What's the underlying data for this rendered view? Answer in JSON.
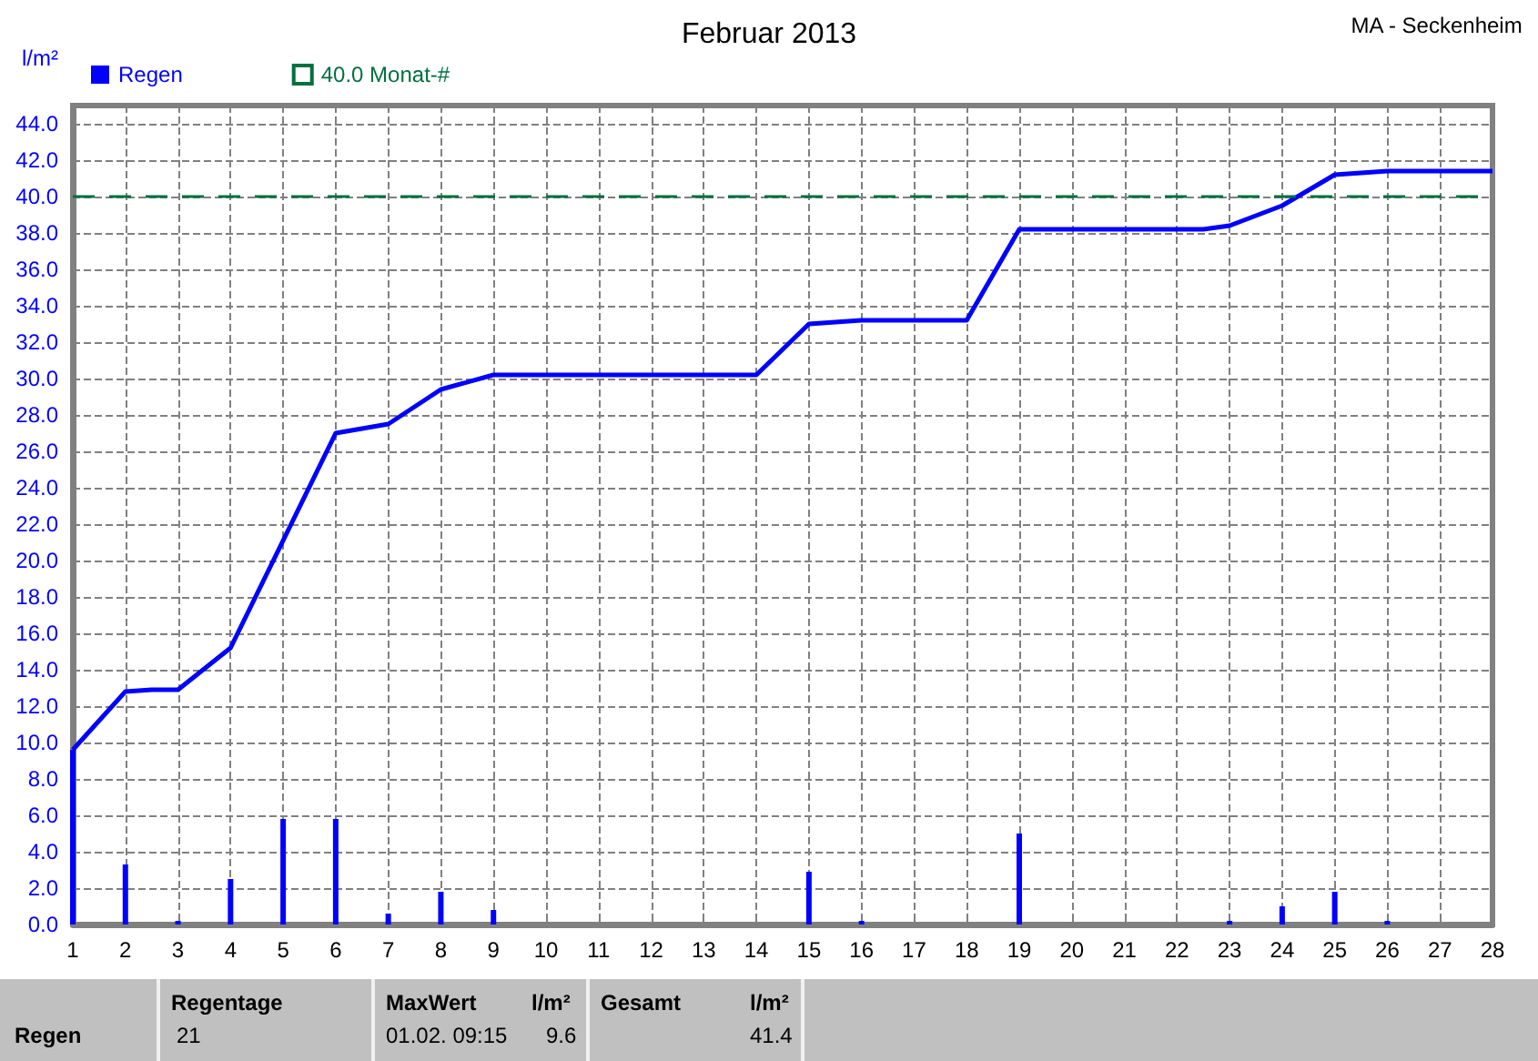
{
  "chart_data": {
    "type": "bar",
    "title": "Februar 2013",
    "ylabel": "l/m²",
    "xlim": [
      1,
      28
    ],
    "xticks": [
      1,
      2,
      3,
      4,
      5,
      6,
      7,
      8,
      9,
      10,
      11,
      12,
      13,
      14,
      15,
      16,
      17,
      18,
      19,
      20,
      21,
      22,
      23,
      24,
      25,
      26,
      27,
      28
    ],
    "ylim": [
      0,
      45
    ],
    "yticks": [
      {
        "value": 0,
        "label": "0.0"
      },
      {
        "value": 2,
        "label": "2.0"
      },
      {
        "value": 4,
        "label": "4.0"
      },
      {
        "value": 6,
        "label": "6.0"
      },
      {
        "value": 8,
        "label": "8.0"
      },
      {
        "value": 10,
        "label": "10.0"
      },
      {
        "value": 12,
        "label": "12.0"
      },
      {
        "value": 14,
        "label": "14.0"
      },
      {
        "value": 16,
        "label": "16.0"
      },
      {
        "value": 18,
        "label": "18.0"
      },
      {
        "value": 20,
        "label": "20.0"
      },
      {
        "value": 22,
        "label": "22.0"
      },
      {
        "value": 24,
        "label": "24.0"
      },
      {
        "value": 26,
        "label": "26.0"
      },
      {
        "value": 28,
        "label": "28.0"
      },
      {
        "value": 30,
        "label": "30.0"
      },
      {
        "value": 32,
        "label": "32.0"
      },
      {
        "value": 34,
        "label": "34.0"
      },
      {
        "value": 36,
        "label": "36.0"
      },
      {
        "value": 38,
        "label": "38.0"
      },
      {
        "value": 40,
        "label": "40.0"
      },
      {
        "value": 42,
        "label": "42.0"
      },
      {
        "value": 44,
        "label": "44.0"
      }
    ],
    "grid": true,
    "legend": "top left",
    "series": [
      {
        "name": "Regen",
        "color": "#0000ff",
        "x": [
          1,
          2,
          3,
          4,
          5,
          6,
          7,
          8,
          9,
          15,
          16,
          19,
          23,
          24,
          25,
          26
        ],
        "values": [
          9.6,
          3.3,
          0.2,
          2.5,
          5.8,
          5.8,
          0.6,
          1.8,
          0.8,
          2.9,
          0.2,
          5.0,
          0.2,
          1.0,
          1.8,
          0.2
        ]
      },
      {
        "type": "line",
        "color": "#0000ff",
        "x": [
          1,
          2,
          2.5,
          3,
          4,
          6,
          7,
          8,
          9,
          14,
          15,
          15.5,
          16,
          18,
          19,
          22.5,
          23,
          24,
          25,
          26,
          28
        ],
        "values": [
          9.6,
          12.8,
          12.9,
          12.9,
          15.2,
          27.0,
          27.5,
          29.4,
          30.2,
          30.2,
          33.0,
          33.1,
          33.2,
          33.2,
          38.2,
          38.2,
          38.4,
          39.5,
          41.2,
          41.4,
          41.4
        ]
      }
    ],
    "ref_lines": [
      {
        "axis": "y",
        "value": 40,
        "label": "40.0 Monat-#",
        "color": "#007040",
        "line_style": "dashed"
      }
    ],
    "annotations": [
      "MA - Seckenheim",
      "Regen",
      "Regentage",
      "21",
      "MaxWert",
      "01.02.  09:15",
      "l/m²",
      "9.6",
      "Gesamt",
      "l/m²",
      "41.4"
    ]
  }
}
